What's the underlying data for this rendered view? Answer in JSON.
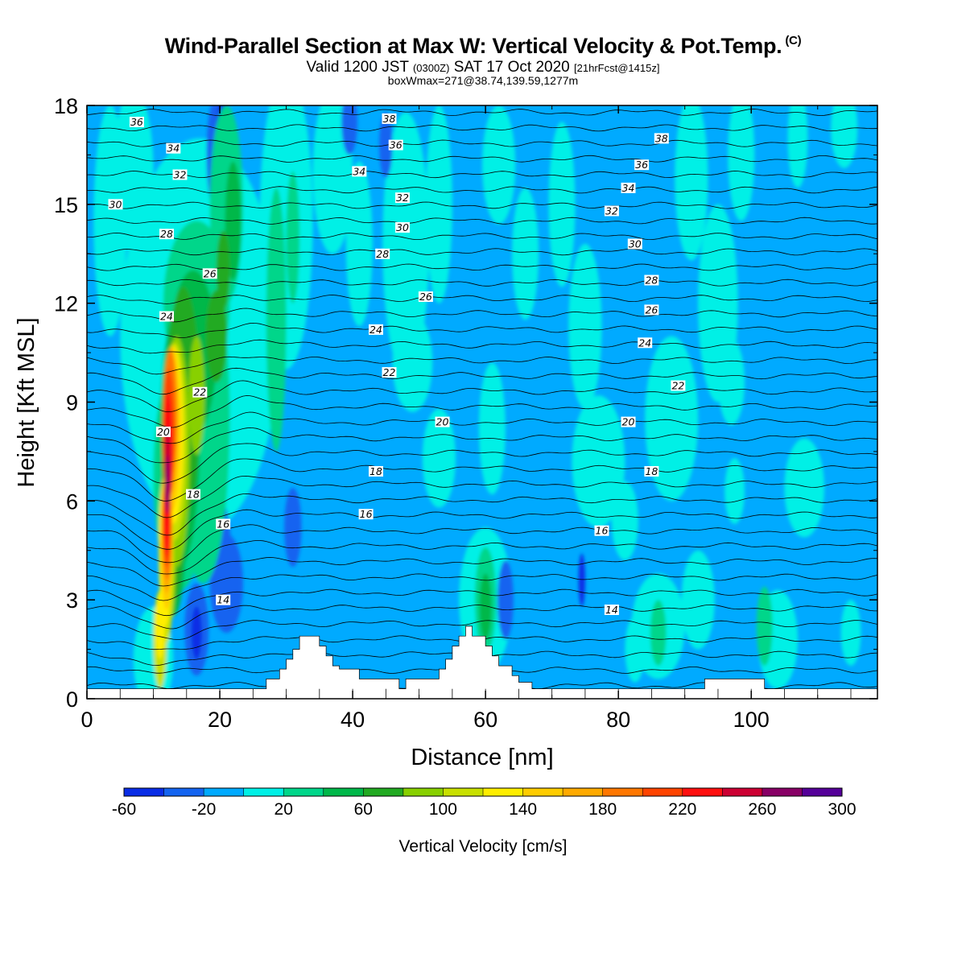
{
  "title": {
    "main": "Wind-Parallel Section at Max W: Vertical Velocity & Pot.Temp.",
    "copyright": "(C)",
    "valid_prefix": "Valid 1200 JST",
    "valid_utc": "(0300Z)",
    "valid_date": "SAT 17 Oct 2020",
    "forecast": "[21hrFcst@1415z]",
    "box": "boxWmax=271@38.74,139.59,1277m"
  },
  "chart_data": {
    "type": "heatmap",
    "xlabel": "Distance [nm]",
    "ylabel": "Height [Kft MSL]",
    "xlim": [
      0,
      119
    ],
    "ylim": [
      0,
      18
    ],
    "xticks": [
      0,
      20,
      40,
      60,
      80,
      100
    ],
    "yticks": [
      0,
      3,
      6,
      9,
      12,
      15,
      18
    ],
    "colorbar": {
      "label": "Vertical Velocity [cm/s]",
      "levels": [
        -60,
        -40,
        -20,
        0,
        20,
        40,
        60,
        80,
        100,
        120,
        140,
        160,
        180,
        200,
        220,
        240,
        260,
        280,
        300
      ],
      "tick_labels": [
        "-60",
        "-20",
        "20",
        "60",
        "100",
        "140",
        "180",
        "220",
        "260",
        "300"
      ],
      "colors": [
        "#0a2de6",
        "#1464f0",
        "#00aaff",
        "#00f0e6",
        "#00d68a",
        "#00b84a",
        "#22aa22",
        "#88d000",
        "#c8e000",
        "#ffee00",
        "#ffcc00",
        "#ffaa00",
        "#ff7700",
        "#ff4400",
        "#ff1010",
        "#cc0033",
        "#880066",
        "#550099"
      ]
    },
    "background_color": "#00aaff",
    "updraft_core": {
      "x_nm": 12,
      "z_kft": 6.5,
      "max_w_cms": 271
    },
    "theta_contour_labels": [
      {
        "text": "36",
        "x": 7.5,
        "z": 17.5
      },
      {
        "text": "34",
        "x": 13,
        "z": 16.7
      },
      {
        "text": "32",
        "x": 14,
        "z": 15.9
      },
      {
        "text": "30",
        "x": 4.3,
        "z": 15.0
      },
      {
        "text": "28",
        "x": 12,
        "z": 14.1
      },
      {
        "text": "26",
        "x": 18.5,
        "z": 12.9
      },
      {
        "text": "24",
        "x": 12,
        "z": 11.6
      },
      {
        "text": "22",
        "x": 17,
        "z": 9.3
      },
      {
        "text": "20",
        "x": 11.5,
        "z": 8.1
      },
      {
        "text": "18",
        "x": 16,
        "z": 6.2
      },
      {
        "text": "16",
        "x": 20.5,
        "z": 5.3
      },
      {
        "text": "14",
        "x": 20.5,
        "z": 3.0
      },
      {
        "text": "38",
        "x": 45.5,
        "z": 17.6
      },
      {
        "text": "36",
        "x": 46.5,
        "z": 16.8
      },
      {
        "text": "34",
        "x": 41,
        "z": 16.0
      },
      {
        "text": "32",
        "x": 47.5,
        "z": 15.2
      },
      {
        "text": "30",
        "x": 47.5,
        "z": 14.3
      },
      {
        "text": "28",
        "x": 44.5,
        "z": 13.5
      },
      {
        "text": "26",
        "x": 51,
        "z": 12.2
      },
      {
        "text": "24",
        "x": 43.5,
        "z": 11.2
      },
      {
        "text": "22",
        "x": 45.5,
        "z": 9.9
      },
      {
        "text": "20",
        "x": 53.5,
        "z": 8.4
      },
      {
        "text": "18",
        "x": 43.5,
        "z": 6.9
      },
      {
        "text": "16",
        "x": 42,
        "z": 5.6
      },
      {
        "text": "38",
        "x": 86.5,
        "z": 17.0
      },
      {
        "text": "36",
        "x": 83.5,
        "z": 16.2
      },
      {
        "text": "34",
        "x": 81.5,
        "z": 15.5
      },
      {
        "text": "32",
        "x": 79,
        "z": 14.8
      },
      {
        "text": "30",
        "x": 82.5,
        "z": 13.8
      },
      {
        "text": "28",
        "x": 85,
        "z": 12.7
      },
      {
        "text": "26",
        "x": 85,
        "z": 11.8
      },
      {
        "text": "24",
        "x": 84,
        "z": 10.8
      },
      {
        "text": "22",
        "x": 89,
        "z": 9.5
      },
      {
        "text": "20",
        "x": 81.5,
        "z": 8.4
      },
      {
        "text": "18",
        "x": 85,
        "z": 6.9
      },
      {
        "text": "16",
        "x": 77.5,
        "z": 5.1
      },
      {
        "text": "14",
        "x": 79,
        "z": 2.7
      }
    ],
    "terrain": [
      [
        0,
        0.3
      ],
      [
        27,
        0.3
      ],
      [
        27,
        0.6
      ],
      [
        29,
        0.6
      ],
      [
        29,
        0.9
      ],
      [
        30,
        0.9
      ],
      [
        30,
        1.2
      ],
      [
        31,
        1.2
      ],
      [
        31,
        1.5
      ],
      [
        32,
        1.5
      ],
      [
        32,
        1.9
      ],
      [
        35,
        1.9
      ],
      [
        35,
        1.6
      ],
      [
        36,
        1.6
      ],
      [
        36,
        1.3
      ],
      [
        37,
        1.3
      ],
      [
        37,
        1.0
      ],
      [
        38,
        1.0
      ],
      [
        38,
        0.9
      ],
      [
        41,
        0.9
      ],
      [
        41,
        0.6
      ],
      [
        47,
        0.6
      ],
      [
        47,
        0.3
      ],
      [
        48,
        0.3
      ],
      [
        48,
        0.6
      ],
      [
        53,
        0.6
      ],
      [
        53,
        0.9
      ],
      [
        54,
        0.9
      ],
      [
        54,
        1.2
      ],
      [
        55,
        1.2
      ],
      [
        55,
        1.6
      ],
      [
        56,
        1.6
      ],
      [
        56,
        1.9
      ],
      [
        57,
        1.9
      ],
      [
        57,
        2.2
      ],
      [
        58,
        2.2
      ],
      [
        58,
        1.9
      ],
      [
        60,
        1.9
      ],
      [
        60,
        1.6
      ],
      [
        61,
        1.6
      ],
      [
        61,
        1.3
      ],
      [
        62,
        1.3
      ],
      [
        62,
        1.0
      ],
      [
        64,
        1.0
      ],
      [
        64,
        0.7
      ],
      [
        65,
        0.7
      ],
      [
        65,
        0.5
      ],
      [
        67,
        0.5
      ],
      [
        67,
        0.3
      ],
      [
        93,
        0.3
      ],
      [
        93,
        0.6
      ],
      [
        102,
        0.6
      ],
      [
        102,
        0.3
      ],
      [
        119,
        0.3
      ]
    ]
  }
}
